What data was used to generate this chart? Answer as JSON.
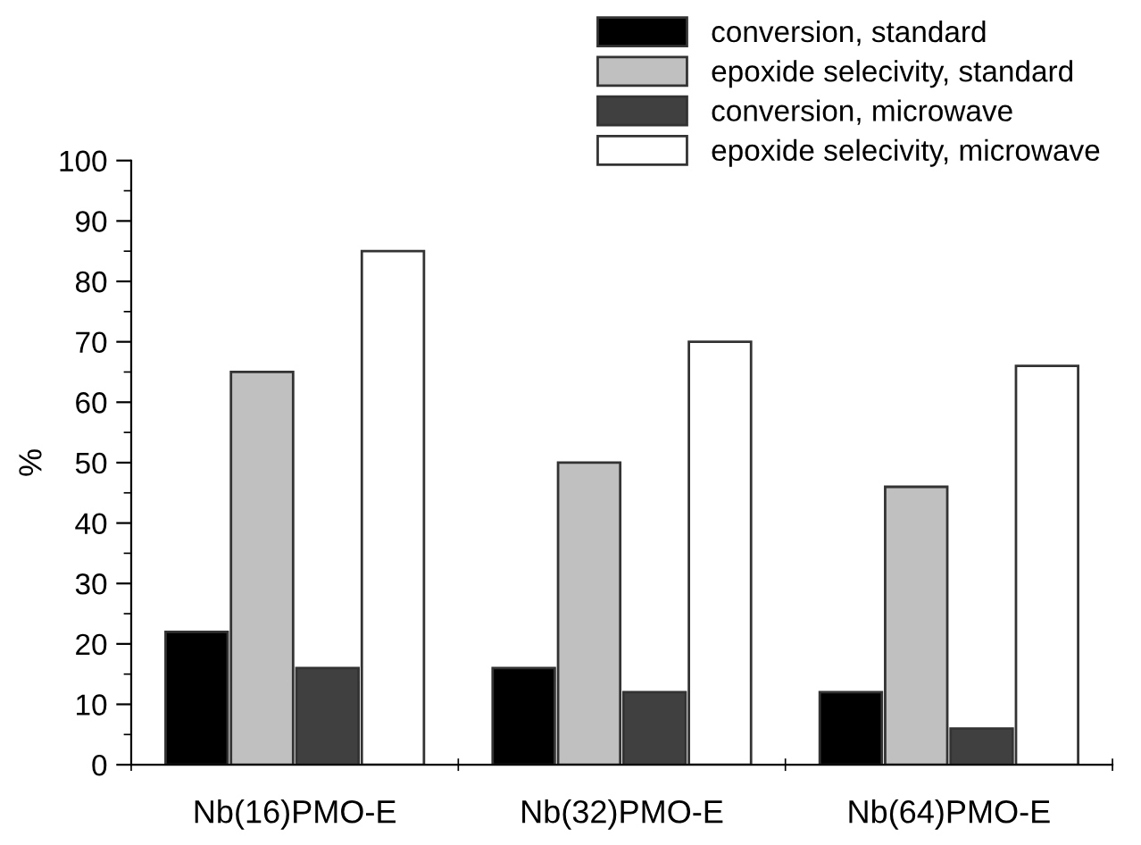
{
  "chart_data": {
    "type": "bar",
    "ylabel": "%",
    "categories": [
      "Nb(16)PMO-E",
      "Nb(32)PMO-E",
      "Nb(64)PMO-E"
    ],
    "series": [
      {
        "name": "conversion, standard",
        "color": "#000000",
        "values": [
          22,
          16,
          12
        ]
      },
      {
        "name": "epoxide selecivity, standard",
        "color": "#c0c0c0",
        "values": [
          65,
          50,
          46
        ]
      },
      {
        "name": "conversion, microwave",
        "color": "#404040",
        "values": [
          16,
          12,
          6
        ]
      },
      {
        "name": "epoxide selecivity, microwave",
        "color": "#ffffff",
        "values": [
          85,
          70,
          66
        ]
      }
    ],
    "ylim": [
      0,
      100
    ],
    "yticks": [
      0,
      10,
      20,
      30,
      40,
      50,
      60,
      70,
      80,
      90,
      100
    ],
    "grid": false,
    "legend": "top right"
  }
}
